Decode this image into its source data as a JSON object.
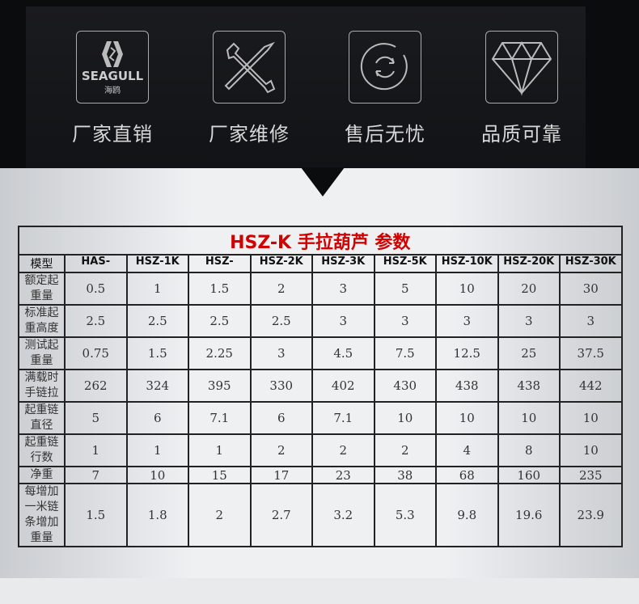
{
  "features": [
    {
      "icon": "seagull-logo-icon",
      "logo_text": "SEAGULL",
      "logo_sub": "海鸥",
      "label": "厂家直销"
    },
    {
      "icon": "wrench-screwdriver-icon",
      "label": "厂家维修"
    },
    {
      "icon": "refresh-icon",
      "label": "售后无忧"
    },
    {
      "icon": "diamond-icon",
      "label": "品质可靠"
    }
  ],
  "table": {
    "title": "HSZ-K 手拉葫芦 参数",
    "header": [
      "模型",
      "HAS-",
      "HSZ-1K",
      "HSZ-",
      "HSZ-2K",
      "HSZ-3K",
      "HSZ-5K",
      "HSZ-10K",
      "HSZ-20K",
      "HSZ-30K"
    ],
    "rows": [
      [
        "额定起重量",
        "0.5",
        "1",
        "1.5",
        "2",
        "3",
        "5",
        "10",
        "20",
        "30"
      ],
      [
        "标准起重高度",
        "2.5",
        "2.5",
        "2.5",
        "2.5",
        "3",
        "3",
        "3",
        "3",
        "3"
      ],
      [
        "测试起重量",
        "0.75",
        "1.5",
        "2.25",
        "3",
        "4.5",
        "7.5",
        "12.5",
        "25",
        "37.5"
      ],
      [
        "满载时手链拉",
        "262",
        "324",
        "395",
        "330",
        "402",
        "430",
        "438",
        "438",
        "442"
      ],
      [
        "起重链直径",
        "5",
        "6",
        "7.1",
        "6",
        "7.1",
        "10",
        "10",
        "10",
        "10"
      ],
      [
        "起重链行数",
        "1",
        "1",
        "1",
        "2",
        "2",
        "2",
        "4",
        "8",
        "10"
      ],
      [
        "净重",
        "7",
        "10",
        "15",
        "17",
        "23",
        "38",
        "68",
        "160",
        "235"
      ],
      [
        "每增加一米链条增加重量",
        "1.5",
        "1.8",
        "2",
        "2.7",
        "3.2",
        "5.3",
        "9.8",
        "19.6",
        "23.9"
      ]
    ]
  }
}
